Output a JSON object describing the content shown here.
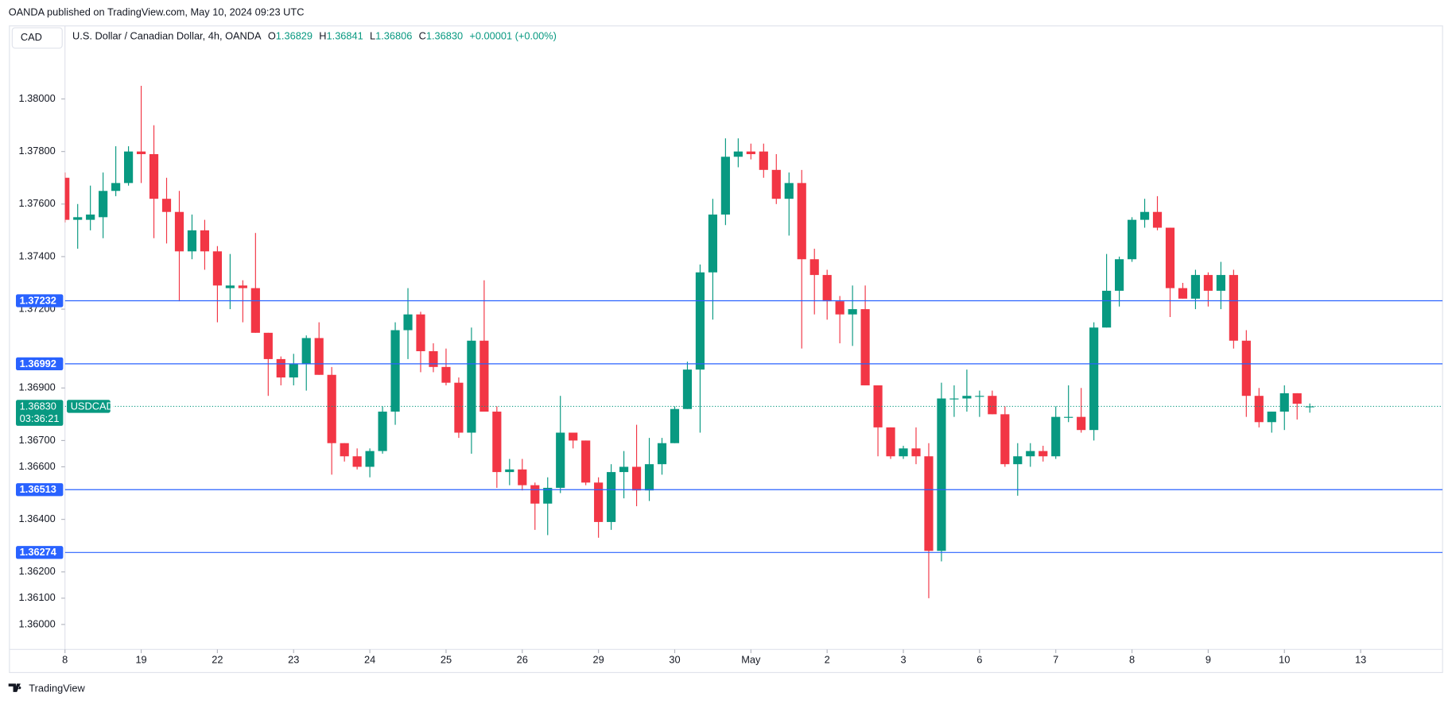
{
  "header": {
    "published": "OANDA published on TradingView.com, May 10, 2024 09:23 UTC",
    "currency": "CAD",
    "symbol": "U.S. Dollar / Canadian Dollar, 4h, OANDA",
    "o_label": "O",
    "o": "1.36829",
    "h_label": "H",
    "h": "1.36841",
    "l_label": "L",
    "l": "1.36806",
    "c_label": "C",
    "c": "1.36830",
    "change": "+0.00001 (+0.00%)"
  },
  "footer": {
    "brand": "TradingView"
  },
  "chart_data": {
    "type": "candlestick",
    "up_color": "#089981",
    "down_color": "#f23645",
    "level_color": "#2962ff",
    "xlim": [
      0,
      108.45
    ],
    "ylim": [
      1.35905,
      1.38278
    ],
    "xticks": [
      {
        "value": 0,
        "label": "8"
      },
      {
        "value": 6,
        "label": "19"
      },
      {
        "value": 12,
        "label": "22"
      },
      {
        "value": 18,
        "label": "23"
      },
      {
        "value": 24,
        "label": "24"
      },
      {
        "value": 30,
        "label": "25"
      },
      {
        "value": 36,
        "label": "26"
      },
      {
        "value": 42,
        "label": "29"
      },
      {
        "value": 48,
        "label": "30"
      },
      {
        "value": 54,
        "label": "May"
      },
      {
        "value": 60,
        "label": "2"
      },
      {
        "value": 66,
        "label": "3"
      },
      {
        "value": 72,
        "label": "6"
      },
      {
        "value": 78,
        "label": "7"
      },
      {
        "value": 84,
        "label": "8"
      },
      {
        "value": 90,
        "label": "9"
      },
      {
        "value": 96,
        "label": "10"
      },
      {
        "value": 102,
        "label": "13"
      }
    ],
    "yticks": [
      {
        "value": 1.38,
        "label": "1.38000"
      },
      {
        "value": 1.378,
        "label": "1.37800"
      },
      {
        "value": 1.376,
        "label": "1.37600"
      },
      {
        "value": 1.374,
        "label": "1.37400"
      },
      {
        "value": 1.372,
        "label": "1.37200"
      },
      {
        "value": 1.369,
        "label": "1.36900"
      },
      {
        "value": 1.367,
        "label": "1.36700"
      },
      {
        "value": 1.366,
        "label": "1.36600"
      },
      {
        "value": 1.364,
        "label": "1.36400"
      },
      {
        "value": 1.362,
        "label": "1.36200"
      },
      {
        "value": 1.361,
        "label": "1.36100"
      },
      {
        "value": 1.36,
        "label": "1.36000"
      }
    ],
    "levels": [
      1.37232,
      1.36992,
      1.36513,
      1.36274
    ],
    "current_price": {
      "value": 1.3683,
      "label": "1.36830"
    },
    "current_symbol": "USDCAD",
    "countdown": "03:36:21",
    "open": [
      1.377,
      1.3754,
      1.3754,
      1.3755,
      1.3765,
      1.3768,
      1.378,
      1.3779,
      1.3762,
      1.3757,
      1.3742,
      1.375,
      1.3742,
      1.3728,
      1.3729,
      1.3728,
      1.3711,
      1.3701,
      1.3694,
      1.3699,
      1.3709,
      1.3695,
      1.3669,
      1.3664,
      1.366,
      1.3666,
      1.3681,
      1.3712,
      1.3718,
      1.3704,
      1.3698,
      1.3692,
      1.3673,
      1.3708,
      1.3681,
      1.3658,
      1.3659,
      1.3653,
      1.3646,
      1.3652,
      1.3673,
      1.367,
      1.3654,
      1.3639,
      1.3658,
      1.366,
      1.3651,
      1.3661,
      1.3669,
      1.3682,
      1.3697,
      1.3734,
      1.3756,
      1.3778,
      1.378,
      1.378,
      1.3773,
      1.3762,
      1.3768,
      1.3739,
      1.3733,
      1.3723,
      1.3718,
      1.372,
      1.3691,
      1.3675,
      1.3664,
      1.3667,
      1.3664,
      1.3628,
      1.3686,
      1.3686,
      1.3687,
      1.3687,
      1.368,
      1.3661,
      1.3664,
      1.3666,
      1.3664,
      1.3679,
      1.3679,
      1.3674,
      1.3713,
      1.3727,
      1.3739,
      1.3754,
      1.3757,
      1.3751,
      1.3728,
      1.3724,
      1.3733,
      1.3727,
      1.3733,
      1.3708,
      1.3687,
      1.3677,
      1.3681,
      1.3688,
      1.36829
    ],
    "high": [
      1.3772,
      1.376,
      1.3767,
      1.3772,
      1.3782,
      1.3782,
      1.3805,
      1.379,
      1.377,
      1.3765,
      1.3756,
      1.3754,
      1.3744,
      1.3741,
      1.3731,
      1.3749,
      1.3711,
      1.3702,
      1.3703,
      1.371,
      1.3715,
      1.3698,
      1.3669,
      1.3667,
      1.3667,
      1.3683,
      1.3715,
      1.3728,
      1.3719,
      1.3707,
      1.3705,
      1.3694,
      1.3713,
      1.3731,
      1.3683,
      1.3663,
      1.3663,
      1.3654,
      1.3656,
      1.3687,
      1.3673,
      1.367,
      1.3656,
      1.3661,
      1.3666,
      1.3676,
      1.3671,
      1.3671,
      1.3683,
      1.37,
      1.3737,
      1.3762,
      1.3785,
      1.3785,
      1.3783,
      1.3783,
      1.3779,
      1.3772,
      1.3773,
      1.3743,
      1.3735,
      1.3725,
      1.3729,
      1.3729,
      1.3691,
      1.3675,
      1.3668,
      1.3675,
      1.3669,
      1.3692,
      1.3691,
      1.3697,
      1.3689,
      1.3689,
      1.3683,
      1.3669,
      1.3669,
      1.3668,
      1.3683,
      1.3691,
      1.369,
      1.3715,
      1.3741,
      1.374,
      1.3755,
      1.3762,
      1.3763,
      1.3751,
      1.373,
      1.3735,
      1.3734,
      1.3738,
      1.3735,
      1.3712,
      1.369,
      1.3681,
      1.3691,
      1.3688,
      1.36841
    ],
    "low": [
      1.3753,
      1.3743,
      1.375,
      1.3747,
      1.3763,
      1.3767,
      1.3768,
      1.3747,
      1.3745,
      1.3723,
      1.3739,
      1.3735,
      1.3715,
      1.372,
      1.3715,
      1.3711,
      1.3687,
      1.3691,
      1.3691,
      1.3689,
      1.3695,
      1.3657,
      1.3662,
      1.3659,
      1.3656,
      1.3665,
      1.3676,
      1.3701,
      1.3696,
      1.3696,
      1.3691,
      1.3671,
      1.3665,
      1.3681,
      1.3652,
      1.3653,
      1.3651,
      1.3636,
      1.3634,
      1.365,
      1.3667,
      1.3653,
      1.3633,
      1.3636,
      1.3648,
      1.3645,
      1.3647,
      1.3657,
      1.3669,
      1.3682,
      1.3673,
      1.3716,
      1.3752,
      1.3774,
      1.3777,
      1.377,
      1.376,
      1.3748,
      1.3705,
      1.3718,
      1.3716,
      1.3707,
      1.3706,
      1.3691,
      1.3664,
      1.3663,
      1.3663,
      1.3661,
      1.361,
      1.3624,
      1.3679,
      1.3681,
      1.3679,
      1.368,
      1.366,
      1.3649,
      1.366,
      1.3662,
      1.3663,
      1.3677,
      1.3673,
      1.367,
      1.3713,
      1.3721,
      1.3738,
      1.3751,
      1.375,
      1.3717,
      1.3724,
      1.372,
      1.3721,
      1.372,
      1.3705,
      1.3679,
      1.3675,
      1.3673,
      1.3674,
      1.3678,
      1.36806
    ],
    "close": [
      1.3754,
      1.3755,
      1.3756,
      1.3765,
      1.3768,
      1.378,
      1.3779,
      1.3762,
      1.3757,
      1.3742,
      1.375,
      1.3742,
      1.3729,
      1.3729,
      1.3728,
      1.3711,
      1.3701,
      1.3694,
      1.3699,
      1.3709,
      1.3695,
      1.3669,
      1.3664,
      1.366,
      1.3666,
      1.3681,
      1.3712,
      1.3718,
      1.3704,
      1.3698,
      1.3692,
      1.3673,
      1.3708,
      1.3681,
      1.3658,
      1.3659,
      1.3653,
      1.3646,
      1.3652,
      1.3673,
      1.367,
      1.3654,
      1.3639,
      1.3658,
      1.366,
      1.3651,
      1.3661,
      1.3669,
      1.3682,
      1.3697,
      1.3734,
      1.3756,
      1.3778,
      1.378,
      1.3779,
      1.3773,
      1.3762,
      1.3768,
      1.3739,
      1.3733,
      1.3723,
      1.3718,
      1.372,
      1.3691,
      1.3675,
      1.3664,
      1.3667,
      1.3664,
      1.3628,
      1.3686,
      1.3686,
      1.3687,
      1.3687,
      1.368,
      1.3661,
      1.3664,
      1.3666,
      1.3664,
      1.3679,
      1.3679,
      1.3674,
      1.3713,
      1.3727,
      1.3739,
      1.3754,
      1.3757,
      1.3751,
      1.3728,
      1.3724,
      1.3733,
      1.3727,
      1.3733,
      1.3708,
      1.3687,
      1.3677,
      1.3681,
      1.3688,
      1.3684,
      1.3683
    ]
  }
}
